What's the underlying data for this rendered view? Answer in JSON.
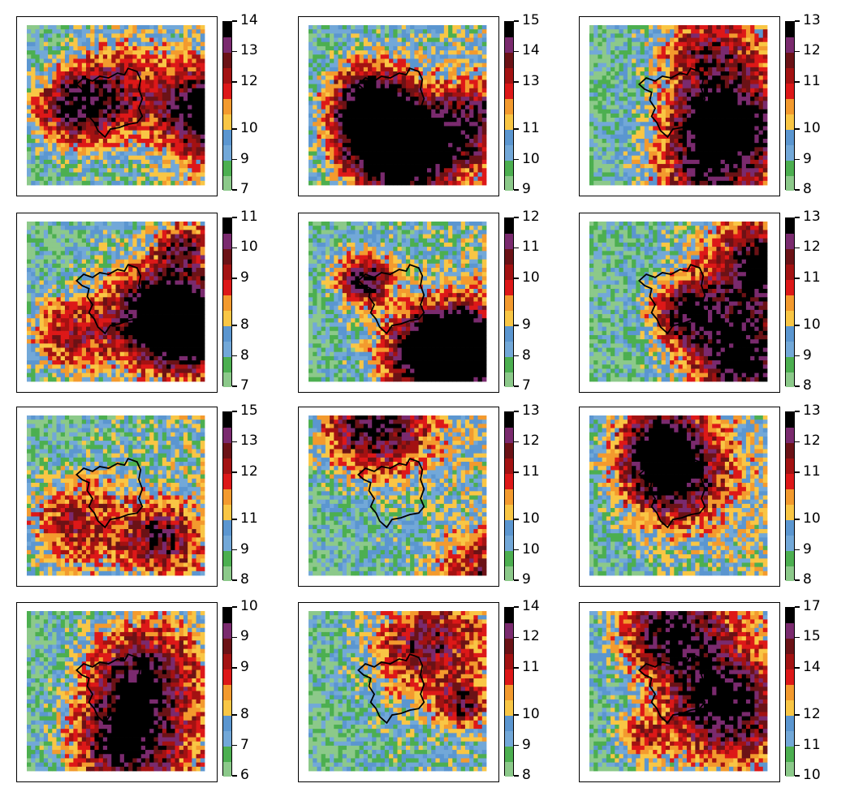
{
  "colors": {
    "levels": [
      "#8cc98a",
      "#4caf50",
      "#72a8d8",
      "#5b96d0",
      "#f9c645",
      "#f39a2e",
      "#dd1818",
      "#a31212",
      "#6b1216",
      "#7a2a6e",
      "#000000"
    ],
    "frame": "#000000",
    "outline": "#000000"
  },
  "chart_data": [
    {
      "type": "heatmap",
      "row": 1,
      "col": 1,
      "colorbar_ticks": [
        "7",
        "9",
        "10",
        "12",
        "13",
        "14"
      ]
    },
    {
      "type": "heatmap",
      "row": 1,
      "col": 2,
      "colorbar_ticks": [
        "9",
        "10",
        "11",
        "13",
        "14",
        "15"
      ]
    },
    {
      "type": "heatmap",
      "row": 1,
      "col": 3,
      "colorbar_ticks": [
        "8",
        "9",
        "10",
        "11",
        "12",
        "13"
      ]
    },
    {
      "type": "heatmap",
      "row": 2,
      "col": 1,
      "colorbar_ticks": [
        "7",
        "8",
        "8",
        "9",
        "10",
        "11"
      ]
    },
    {
      "type": "heatmap",
      "row": 2,
      "col": 2,
      "colorbar_ticks": [
        "7",
        "8",
        "9",
        "10",
        "11",
        "12"
      ]
    },
    {
      "type": "heatmap",
      "row": 2,
      "col": 3,
      "colorbar_ticks": [
        "8",
        "9",
        "10",
        "11",
        "12",
        "13"
      ]
    },
    {
      "type": "heatmap",
      "row": 3,
      "col": 1,
      "colorbar_ticks": [
        "8",
        "9",
        "11",
        "12",
        "13",
        "15"
      ]
    },
    {
      "type": "heatmap",
      "row": 3,
      "col": 2,
      "colorbar_ticks": [
        "9",
        "10",
        "10",
        "11",
        "12",
        "13"
      ]
    },
    {
      "type": "heatmap",
      "row": 3,
      "col": 3,
      "colorbar_ticks": [
        "8",
        "9",
        "10",
        "11",
        "12",
        "13"
      ]
    },
    {
      "type": "heatmap",
      "row": 4,
      "col": 1,
      "colorbar_ticks": [
        "6",
        "7",
        "8",
        "9",
        "9",
        "10"
      ]
    },
    {
      "type": "heatmap",
      "row": 4,
      "col": 2,
      "colorbar_ticks": [
        "8",
        "9",
        "10",
        "11",
        "12",
        "14"
      ]
    },
    {
      "type": "heatmap",
      "row": 4,
      "col": 3,
      "colorbar_ticks": [
        "10",
        "11",
        "12",
        "14",
        "15",
        "17"
      ]
    }
  ]
}
